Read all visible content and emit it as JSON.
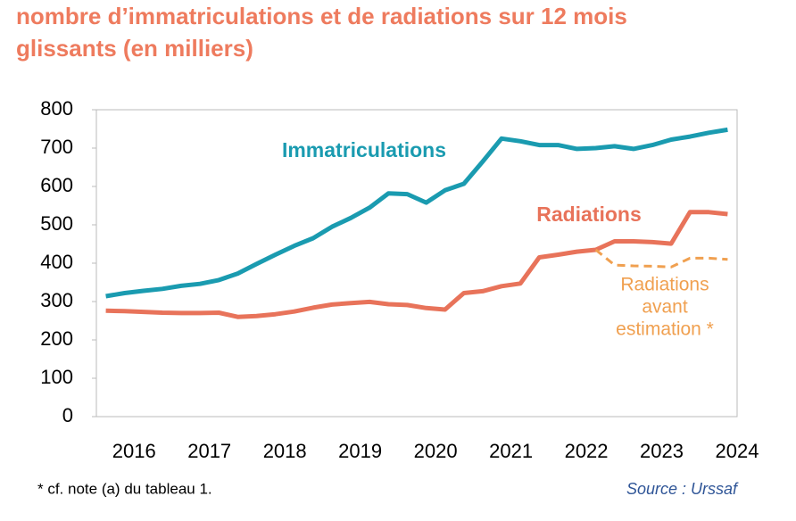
{
  "chart_data": {
    "type": "line",
    "title": [
      "nombre d’immatriculations et de radiations sur 12 mois",
      "glissants (en milliers)"
    ],
    "categories": [
      null,
      "2016",
      null,
      null,
      null,
      "2017",
      null,
      null,
      null,
      "2018",
      null,
      null,
      null,
      "2019",
      null,
      null,
      null,
      "2020",
      null,
      null,
      null,
      "2021",
      null,
      null,
      null,
      "2022",
      null,
      null,
      null,
      "2023",
      null,
      null,
      null,
      "2024"
    ],
    "series": [
      {
        "name": "Immatriculations",
        "color": "#1a9bb0",
        "values": [
          314,
          322,
          328,
          333,
          341,
          346,
          356,
          373,
          398,
          422,
          445,
          465,
          495,
          518,
          545,
          582,
          580,
          558,
          590,
          607,
          665,
          725,
          718,
          708,
          708,
          698,
          700,
          705,
          698,
          708,
          722,
          730,
          740,
          748
        ]
      },
      {
        "name": "Radiations",
        "color": "#e8735a",
        "values": [
          276,
          275,
          273,
          271,
          270,
          270,
          271,
          260,
          262,
          267,
          274,
          284,
          292,
          296,
          299,
          293,
          291,
          283,
          279,
          322,
          327,
          340,
          347,
          415,
          422,
          430,
          435,
          457,
          457,
          455,
          451,
          533,
          533,
          528
        ]
      },
      {
        "name": [
          "Radiations",
          "avant",
          "estimation *"
        ],
        "color": "#f0a050",
        "dashed": true,
        "values": [
          null,
          null,
          null,
          null,
          null,
          null,
          null,
          null,
          null,
          null,
          null,
          null,
          null,
          null,
          null,
          null,
          null,
          null,
          null,
          null,
          null,
          null,
          null,
          null,
          null,
          null,
          435,
          395,
          393,
          392,
          390,
          413,
          413,
          410
        ]
      }
    ],
    "ylim": [
      0,
      800
    ],
    "yticks": [
      0,
      100,
      200,
      300,
      400,
      500,
      600,
      700,
      800
    ],
    "footnote": "* cf. note (a) du tableau 1.",
    "source": "Source : Urssaf"
  }
}
